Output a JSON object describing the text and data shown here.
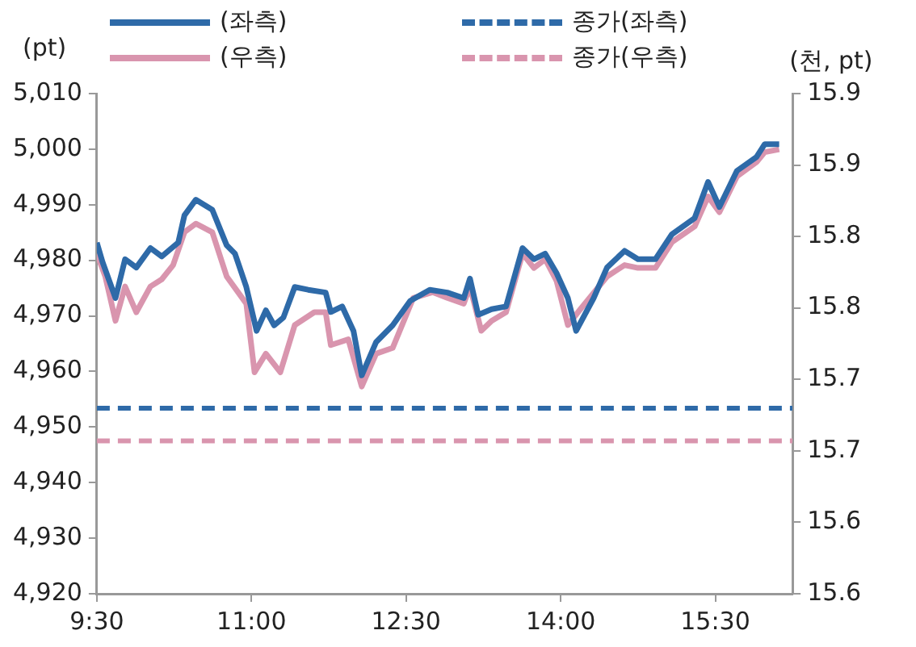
{
  "chart_data": {
    "type": "line",
    "ylabel": "(pt)",
    "y2label": "(천, pt)",
    "xlim": [
      9.5,
      16.25
    ],
    "xticks": [
      {
        "value": 9.5,
        "label": "9:30"
      },
      {
        "value": 11,
        "label": "11:00"
      },
      {
        "value": 12.5,
        "label": "12:30"
      },
      {
        "value": 14,
        "label": "14:00"
      },
      {
        "value": 15.5,
        "label": "15:30"
      }
    ],
    "ylim": [
      4920,
      5010
    ],
    "yticks": [
      {
        "value": 4920,
        "label": "4,920"
      },
      {
        "value": 4930,
        "label": "4,930"
      },
      {
        "value": 4940,
        "label": "4,940"
      },
      {
        "value": 4950,
        "label": "4,950"
      },
      {
        "value": 4960,
        "label": "4,960"
      },
      {
        "value": 4970,
        "label": "4,970"
      },
      {
        "value": 4980,
        "label": "4,980"
      },
      {
        "value": 4990,
        "label": "4,990"
      },
      {
        "value": 5000,
        "label": "5,000"
      },
      {
        "value": 5010,
        "label": "5,010"
      }
    ],
    "y2lim": [
      15.55,
      15.9
    ],
    "y2ticks": [
      {
        "value": 15.55,
        "label": "15.6"
      },
      {
        "value": 15.6,
        "label": "15.6"
      },
      {
        "value": 15.65,
        "label": "15.7"
      },
      {
        "value": 15.7,
        "label": "15.7"
      },
      {
        "value": 15.75,
        "label": "15.8"
      },
      {
        "value": 15.8,
        "label": "15.8"
      },
      {
        "value": 15.85,
        "label": "15.9"
      },
      {
        "value": 15.9,
        "label": "15.9"
      }
    ],
    "legend": "top",
    "marker": "none",
    "series": [
      {
        "name": "(좌측)",
        "color": "#2e6aa8",
        "x": [
          9.5,
          9.555,
          9.681,
          9.774,
          9.883,
          10.02,
          10.13,
          10.29,
          10.35,
          10.46,
          10.62,
          10.76,
          10.84,
          10.95,
          11.05,
          11.14,
          11.22,
          11.31,
          11.42,
          11.55,
          11.72,
          11.77,
          11.88,
          11.99,
          12.07,
          12.21,
          12.37,
          12.54,
          12.73,
          12.9,
          13.06,
          13.12,
          13.2,
          13.33,
          13.47,
          13.63,
          13.74,
          13.85,
          13.96,
          14.07,
          14.15,
          14.32,
          14.45,
          14.62,
          14.75,
          14.92,
          15.08,
          15.3,
          15.43,
          15.54,
          15.71,
          15.9,
          15.98,
          16.12
        ],
        "values": [
          4983.2,
          4979.7,
          4973.2,
          4980.2,
          4978.7,
          4982.2,
          4980.7,
          4983.2,
          4988.1,
          4990.9,
          4989.1,
          4982.7,
          4981.2,
          4975.2,
          4967.3,
          4971.0,
          4968.3,
          4969.7,
          4975.2,
          4974.7,
          4974.2,
          4970.7,
          4971.7,
          4967.3,
          4959.3,
          4965.3,
          4968.3,
          4972.7,
          4974.7,
          4974.2,
          4973.2,
          4976.7,
          4970.2,
          4971.2,
          4971.7,
          4982.2,
          4980.2,
          4981.2,
          4977.7,
          4973.2,
          4967.3,
          4973.2,
          4978.7,
          4981.7,
          4980.2,
          4980.2,
          4984.7,
          4987.6,
          4994.1,
          4989.6,
          4996.1,
          4998.6,
          5000.9,
          5000.9
        ]
      },
      {
        "name": "(우측)",
        "color": "#d995ae",
        "axis": "y2",
        "x": [
          9.5,
          9.582,
          9.681,
          9.774,
          9.883,
          10.02,
          10.13,
          10.24,
          10.35,
          10.46,
          10.62,
          10.76,
          10.95,
          11.03,
          11.14,
          11.28,
          11.42,
          11.61,
          11.72,
          11.77,
          11.94,
          12.07,
          12.21,
          12.37,
          12.57,
          12.76,
          12.9,
          13.06,
          13.12,
          13.23,
          13.33,
          13.47,
          13.63,
          13.74,
          13.85,
          13.96,
          14.07,
          14.19,
          14.45,
          14.62,
          14.75,
          14.92,
          15.08,
          15.3,
          15.43,
          15.54,
          15.71,
          15.9,
          15.98,
          16.12
        ],
        "values": [
          15.788,
          15.772,
          15.741,
          15.765,
          15.747,
          15.765,
          15.77,
          15.78,
          15.803,
          15.809,
          15.803,
          15.772,
          15.753,
          15.705,
          15.718,
          15.705,
          15.738,
          15.747,
          15.747,
          15.724,
          15.728,
          15.695,
          15.718,
          15.722,
          15.757,
          15.761,
          15.757,
          15.753,
          15.765,
          15.734,
          15.741,
          15.747,
          15.788,
          15.778,
          15.784,
          15.769,
          15.738,
          15.749,
          15.772,
          15.78,
          15.778,
          15.778,
          15.796,
          15.807,
          15.828,
          15.817,
          15.842,
          15.852,
          15.859,
          15.861
        ]
      }
    ],
    "ref_lines": [
      {
        "axis": "y",
        "value": 4953.4,
        "label": "종가(좌측)",
        "color": "#2e6aa8",
        "line_style": "dashed"
      },
      {
        "axis": "y2",
        "value": 15.657,
        "label": "종가(우측)",
        "color": "#d995ae",
        "line_style": "dashed"
      }
    ]
  }
}
